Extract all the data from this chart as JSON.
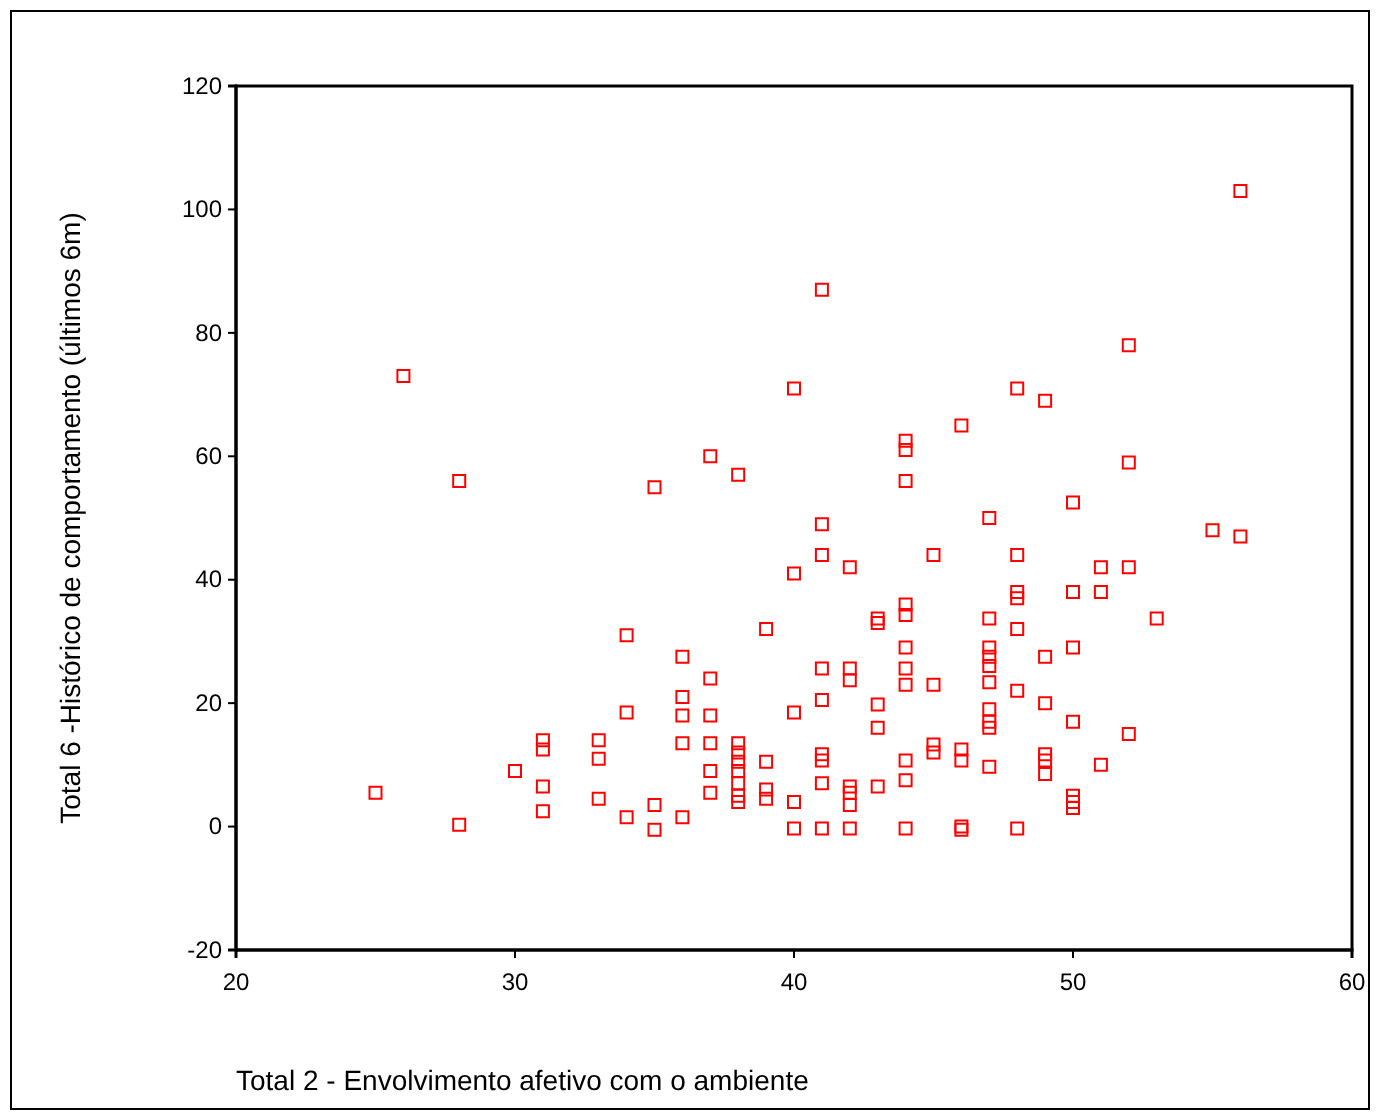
{
  "chart_data": {
    "type": "scatter",
    "xlabel": "Total 2 - Envolvimento afetivo com o ambiente",
    "ylabel": "Total 6 -Histórico de comportamento (últimos 6m)",
    "xlim": [
      20,
      60
    ],
    "xticks": [
      20,
      30,
      40,
      50,
      60
    ],
    "ylim": [
      -20,
      120
    ],
    "yticks": [
      -20,
      0,
      20,
      40,
      60,
      80,
      100,
      120
    ],
    "grid": false,
    "marker": "square",
    "series": [
      {
        "color": "#ff0000",
        "x": [
          25,
          26,
          28,
          28,
          30,
          31,
          31,
          31,
          31,
          33,
          33,
          33,
          34,
          34,
          34,
          35,
          35,
          35,
          36,
          36,
          36,
          36,
          36,
          37,
          37,
          37,
          37,
          37,
          37,
          38,
          38,
          38,
          38,
          38,
          38,
          38,
          38,
          39,
          39,
          39,
          39,
          40,
          40,
          40,
          40,
          40,
          41,
          41,
          41,
          41,
          41,
          41,
          41,
          41,
          41,
          42,
          42,
          42,
          42,
          42,
          42,
          42,
          43,
          43,
          43,
          43,
          43,
          44,
          44,
          44,
          44,
          44,
          44,
          44,
          44,
          44,
          44,
          44,
          45,
          45,
          45,
          45,
          46,
          46,
          46,
          46,
          46,
          47,
          47,
          47,
          47,
          47,
          47,
          47,
          47,
          47,
          47,
          48,
          48,
          48,
          48,
          48,
          48,
          48,
          49,
          49,
          49,
          49,
          49,
          49,
          50,
          50,
          50,
          50,
          50,
          50,
          50,
          51,
          51,
          51,
          52,
          52,
          52,
          52,
          53,
          55,
          56,
          56
        ],
        "values": [
          5.5,
          73,
          56,
          0.3,
          9,
          14,
          12.5,
          6.5,
          2.5,
          14,
          11,
          4.5,
          31,
          18.5,
          1.5,
          55,
          3.5,
          -0.5,
          27.5,
          21,
          18,
          13.5,
          1.5,
          60,
          24,
          18,
          13.5,
          9,
          5.5,
          57,
          13.5,
          12,
          10.5,
          9,
          7,
          5,
          4,
          32,
          10.5,
          6,
          4.5,
          71,
          41,
          18.5,
          4,
          -0.3,
          87,
          49,
          44,
          25.6,
          20.5,
          11.7,
          10.7,
          7,
          -0.3,
          42,
          25.6,
          23.7,
          6.5,
          5.5,
          3.5,
          -0.3,
          33.7,
          33,
          19.8,
          16,
          6.5,
          62.5,
          61,
          56,
          36,
          34.3,
          29,
          25.6,
          23,
          10.7,
          7.5,
          -0.3,
          44,
          23,
          13.3,
          12,
          65,
          12.5,
          10.7,
          0,
          -0.5,
          50,
          33.7,
          29,
          27.5,
          26,
          23.4,
          19,
          17,
          16,
          9.7,
          71,
          44,
          38,
          37,
          32,
          22,
          -0.3,
          69,
          27.5,
          20,
          11.7,
          10.7,
          8.5,
          52.5,
          38,
          29,
          17,
          5,
          4,
          3,
          38,
          42,
          10,
          78,
          59,
          42,
          15,
          33.7,
          48,
          47,
          103
        ]
      }
    ]
  }
}
